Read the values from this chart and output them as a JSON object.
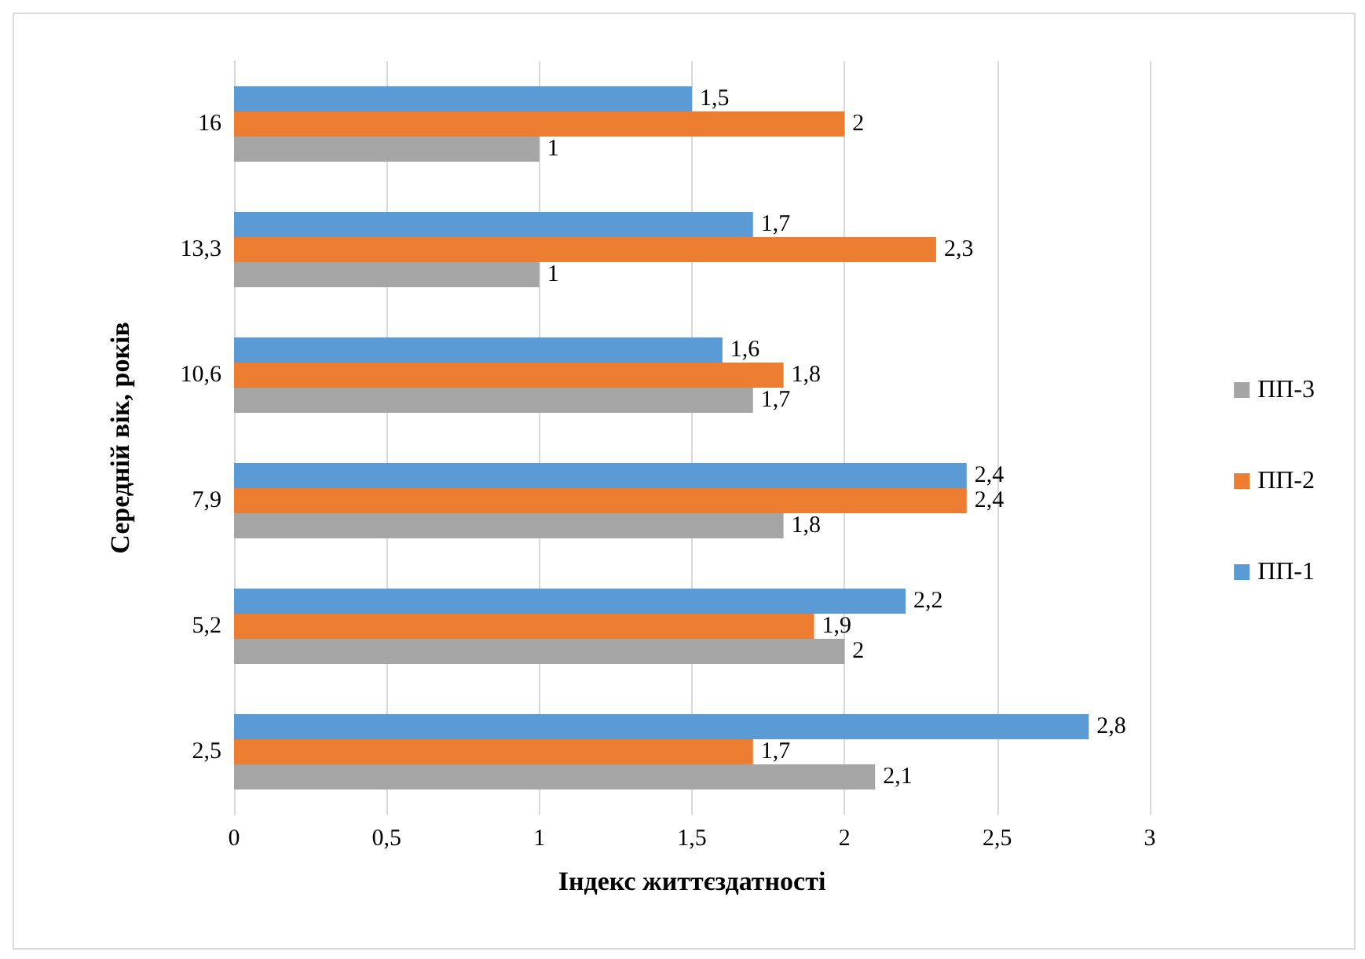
{
  "chart_data": {
    "type": "bar",
    "orientation": "horizontal",
    "xlabel": "Індекс життєздатності",
    "ylabel": "Середній вік, років",
    "categories": [
      "16",
      "13,3",
      "10,6",
      "7,9",
      "5,2",
      "2,5"
    ],
    "series": [
      {
        "name": "ПП-1",
        "color": "#5b9bd5",
        "values": [
          1.5,
          1.7,
          1.6,
          2.4,
          2.2,
          2.8
        ],
        "value_labels": [
          "1,5",
          "1,7",
          "1,6",
          "2,4",
          "2,2",
          "2,8"
        ]
      },
      {
        "name": "ПП-2",
        "color": "#ed7d31",
        "values": [
          2,
          2.3,
          1.8,
          2.4,
          1.9,
          1.7
        ],
        "value_labels": [
          "2",
          "2,3",
          "1,8",
          "2,4",
          "1,9",
          "1,7"
        ]
      },
      {
        "name": "ПП-3",
        "color": "#a5a5a5",
        "values": [
          1,
          1,
          1.7,
          1.8,
          2,
          2.1
        ],
        "value_labels": [
          "1",
          "1",
          "1,7",
          "1,8",
          "2",
          "2,1"
        ]
      }
    ],
    "xlim": [
      0,
      3
    ],
    "xticks": [
      0,
      {
        "value": 0.5,
        "label": "0,5"
      },
      1,
      {
        "value": 1.5,
        "label": "1,5"
      },
      2,
      {
        "value": 2.5,
        "label": "2,5"
      },
      3
    ],
    "grid": "x",
    "legend": "right"
  }
}
